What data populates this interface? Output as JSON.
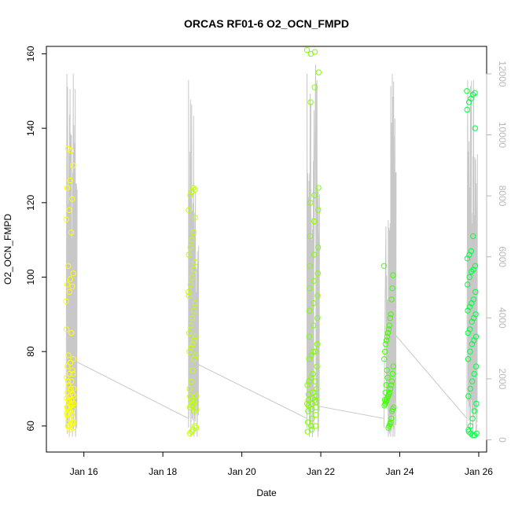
{
  "chart_data": {
    "type": "scatter",
    "title": "ORCAS RF01-6 O2_OCN_FMPD",
    "xlabel": "Date",
    "ylabel": "O2_OCN_FMPD",
    "x_ticks": [
      {
        "day": 16,
        "label": "Jan 16"
      },
      {
        "day": 18,
        "label": "Jan 18"
      },
      {
        "day": 20,
        "label": "Jan 20"
      },
      {
        "day": 22,
        "label": "Jan 22"
      },
      {
        "day": 24,
        "label": "Jan 24"
      },
      {
        "day": 26,
        "label": "Jan 26"
      }
    ],
    "xlim": [
      15.05,
      26.2
    ],
    "ylim": [
      53,
      162
    ],
    "y_ticks": [
      60,
      80,
      100,
      120,
      140,
      160
    ],
    "y2lim": [
      -400,
      12900
    ],
    "y2_ticks": [
      0,
      2000,
      4000,
      6000,
      8000,
      10000,
      12000
    ],
    "grey_line_color": "#c8c8c8",
    "flights": [
      {
        "color": "#ffff00",
        "start": 15.55,
        "end": 15.75,
        "alt_spikes": [
          [
            15.6,
            12000
          ],
          [
            15.68,
            11500
          ],
          [
            15.76,
            12000
          ]
        ],
        "end_altitude": 2600,
        "o2": [
          93.5,
          134,
          134.5,
          130,
          126,
          124,
          121,
          118,
          115.5,
          112,
          103,
          101,
          99.5,
          98,
          97.5,
          96,
          86,
          85,
          79,
          78,
          77,
          76,
          75,
          74,
          73,
          72,
          71,
          70,
          69.5,
          69,
          68.5,
          68,
          67.5,
          67,
          66.5,
          66,
          65.5,
          65,
          64.5,
          64,
          63.5,
          63,
          62,
          61,
          60.5,
          60,
          59.5,
          59,
          65,
          66,
          67,
          68,
          70,
          72,
          74,
          64,
          63,
          61,
          60
        ]
      },
      {
        "color": "#bfff00",
        "start": 18.65,
        "end": 18.85,
        "alt_spikes": [
          [
            18.68,
            11800
          ],
          [
            18.76,
            11000
          ],
          [
            18.84,
            7400
          ]
        ],
        "end_altitude": 2500,
        "o2": [
          96,
          123.5,
          124,
          123,
          122,
          118,
          116,
          112,
          110,
          108,
          106,
          104,
          102,
          100,
          98,
          95,
          93,
          91,
          89,
          87,
          85,
          84,
          83,
          82,
          81,
          80,
          79,
          78,
          75,
          72,
          70,
          68,
          66.5,
          66,
          65.5,
          65,
          64.5,
          64,
          59,
          58.5,
          58,
          59.5,
          60,
          66,
          67,
          68
        ]
      },
      {
        "color": "#80ff00",
        "start": 21.65,
        "end": 21.95,
        "alt_spikes": [
          [
            21.68,
            12000
          ],
          [
            21.76,
            11200
          ],
          [
            21.9,
            12300
          ]
        ],
        "end_altitude": 1100,
        "o2": [
          161,
          160.5,
          160,
          155,
          151,
          147,
          124,
          122,
          120,
          118,
          115,
          111,
          108,
          106,
          103,
          101,
          99,
          97,
          95,
          93,
          91,
          89,
          87,
          84,
          82,
          80,
          78,
          76,
          74,
          72,
          70,
          69,
          68.5,
          68,
          67.5,
          67,
          66.5,
          66,
          65.5,
          65,
          64.5,
          64,
          63,
          62,
          61,
          60,
          59,
          58.5,
          80,
          79,
          71,
          72,
          73,
          66,
          67,
          60
        ]
      },
      {
        "color": "#40ff00",
        "start": 23.6,
        "end": 23.85,
        "alt_spikes": [
          [
            23.68,
            7000
          ],
          [
            23.74,
            7200
          ],
          [
            23.8,
            11600
          ],
          [
            23.84,
            12000
          ]
        ],
        "end_altitude": 3500,
        "o2": [
          103,
          100.5,
          97,
          94,
          90,
          89,
          87,
          86,
          85,
          84,
          83,
          82,
          80,
          78,
          76,
          74,
          72,
          71,
          70,
          69,
          68.5,
          68,
          67.5,
          67,
          66.5,
          66,
          65.5,
          65,
          64.5,
          64,
          62,
          61,
          60.5,
          60,
          59.5,
          73,
          75,
          71,
          69,
          67
        ]
      },
      {
        "color": "#00ff40",
        "start": 25.7,
        "end": 25.95,
        "alt_spikes": [
          [
            25.75,
            11800
          ],
          [
            25.82,
            11600
          ],
          [
            25.9,
            11800
          ]
        ],
        "end_altitude": 500,
        "o2": [
          150,
          149.5,
          149,
          148,
          147,
          145,
          140,
          111,
          107,
          106,
          105,
          103,
          102,
          101.5,
          100,
          98,
          96,
          94,
          93,
          92,
          91,
          90,
          89,
          88,
          86,
          85,
          84,
          83,
          82,
          80,
          78,
          76,
          74,
          72,
          70,
          68,
          66,
          64,
          62,
          60,
          59,
          58,
          57.5,
          57.5,
          58,
          58.5
        ]
      }
    ]
  }
}
